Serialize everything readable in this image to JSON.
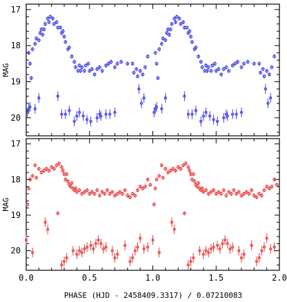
{
  "chart_data": {
    "type": "scatter",
    "xlabel": "PHASE (HJD - 2458409.3317) / 0.07210083",
    "xlim": [
      0,
      2
    ],
    "x_ticks": [
      "0.0",
      "0.5",
      "1.0",
      "1.5",
      "2.0"
    ],
    "panels": [
      {
        "ylabel": "MAG",
        "ylim": [
          20.5,
          16.85
        ],
        "y_ticks": [
          "17",
          "18",
          "19",
          "20"
        ],
        "color": "#3a3ae8",
        "series": [
          {
            "points": [
              [
                0.02,
                18.2
              ],
              [
                0.03,
                18.5
              ],
              [
                0.04,
                18.9
              ],
              [
                0.05,
                18.1
              ],
              [
                0.07,
                17.95
              ],
              [
                0.08,
                17.8
              ],
              [
                0.1,
                17.85
              ],
              [
                0.11,
                17.65
              ],
              [
                0.12,
                17.55
              ],
              [
                0.13,
                17.7
              ],
              [
                0.14,
                17.55
              ],
              [
                0.15,
                17.4
              ],
              [
                0.17,
                17.25
              ],
              [
                0.18,
                17.35
              ],
              [
                0.19,
                17.2
              ],
              [
                0.21,
                17.25
              ],
              [
                0.22,
                17.4
              ],
              [
                0.24,
                17.35
              ],
              [
                0.25,
                17.5
              ],
              [
                0.27,
                17.5
              ],
              [
                0.28,
                17.65
              ],
              [
                0.29,
                17.6
              ],
              [
                0.3,
                17.75
              ],
              [
                0.31,
                17.9
              ],
              [
                0.33,
                18.1
              ],
              [
                0.34,
                18.05
              ],
              [
                0.36,
                18.3
              ],
              [
                0.38,
                18.45
              ],
              [
                0.39,
                18.6
              ],
              [
                0.41,
                18.7
              ],
              [
                0.42,
                18.55
              ],
              [
                0.43,
                18.7
              ],
              [
                0.44,
                18.6
              ],
              [
                0.46,
                18.7
              ],
              [
                0.47,
                18.55
              ],
              [
                0.49,
                18.5
              ],
              [
                0.5,
                18.7
              ],
              [
                0.52,
                18.65
              ],
              [
                0.54,
                18.8
              ],
              [
                0.56,
                18.65
              ],
              [
                0.58,
                18.6
              ],
              [
                0.6,
                18.7
              ],
              [
                0.63,
                18.55
              ],
              [
                0.65,
                18.5
              ],
              [
                0.67,
                18.45
              ],
              [
                0.7,
                18.6
              ],
              [
                0.72,
                18.5
              ],
              [
                0.75,
                18.45
              ],
              [
                0.8,
                18.5
              ],
              [
                0.84,
                18.5
              ],
              [
                0.85,
                18.75
              ],
              [
                0.87,
                18.65
              ],
              [
                0.88,
                18.85
              ],
              [
                0.9,
                18.7
              ],
              [
                0.92,
                18.8
              ],
              [
                0.94,
                18.6
              ],
              [
                0.96,
                18.3
              ]
            ]
          },
          {
            "points": [
              [
                0.01,
                19.85
              ],
              [
                0.02,
                19.75
              ],
              [
                0.03,
                19.7
              ],
              [
                0.07,
                19.75
              ],
              [
                0.1,
                19.45
              ],
              [
                0.25,
                19.4
              ],
              [
                0.28,
                19.9
              ],
              [
                0.31,
                19.9
              ],
              [
                0.34,
                19.8
              ],
              [
                0.38,
                20.1
              ],
              [
                0.4,
                19.95
              ],
              [
                0.42,
                19.85
              ],
              [
                0.45,
                19.95
              ],
              [
                0.48,
                20.05
              ],
              [
                0.51,
                20.1
              ],
              [
                0.56,
                20.0
              ],
              [
                0.58,
                19.9
              ],
              [
                0.59,
                19.95
              ],
              [
                0.63,
                19.9
              ],
              [
                0.66,
                19.9
              ],
              [
                0.7,
                19.85
              ],
              [
                0.89,
                19.2
              ],
              [
                0.91,
                19.6
              ],
              [
                0.93,
                19.45
              ]
            ]
          }
        ]
      },
      {
        "ylabel": "MAG",
        "ylim": [
          20.55,
          16.85
        ],
        "y_ticks": [
          "17",
          "18",
          "19",
          "20"
        ],
        "color": "#e83a3a",
        "series": [
          {
            "points": [
              [
                0.01,
                18.7
              ],
              [
                0.02,
                18.25
              ],
              [
                0.03,
                18.0
              ],
              [
                0.05,
                17.9
              ],
              [
                0.07,
                17.6
              ],
              [
                0.08,
                17.95
              ],
              [
                0.1,
                17.7
              ],
              [
                0.12,
                17.8
              ],
              [
                0.14,
                17.75
              ],
              [
                0.16,
                17.7
              ],
              [
                0.18,
                17.75
              ],
              [
                0.2,
                17.65
              ],
              [
                0.22,
                17.7
              ],
              [
                0.24,
                17.6
              ],
              [
                0.26,
                17.55
              ],
              [
                0.28,
                17.65
              ],
              [
                0.29,
                17.75
              ],
              [
                0.3,
                17.85
              ],
              [
                0.31,
                18.0
              ],
              [
                0.32,
                17.85
              ],
              [
                0.33,
                18.05
              ],
              [
                0.34,
                18.15
              ],
              [
                0.35,
                18.2
              ],
              [
                0.36,
                18.1
              ],
              [
                0.37,
                18.25
              ],
              [
                0.38,
                18.3
              ],
              [
                0.39,
                18.25
              ],
              [
                0.4,
                18.35
              ],
              [
                0.42,
                18.3
              ],
              [
                0.44,
                18.4
              ],
              [
                0.46,
                18.35
              ],
              [
                0.48,
                18.3
              ],
              [
                0.5,
                18.4
              ],
              [
                0.52,
                18.35
              ],
              [
                0.54,
                18.4
              ],
              [
                0.56,
                18.3
              ],
              [
                0.58,
                18.45
              ],
              [
                0.6,
                18.35
              ],
              [
                0.62,
                18.4
              ],
              [
                0.64,
                18.3
              ],
              [
                0.66,
                18.4
              ],
              [
                0.68,
                18.35
              ],
              [
                0.7,
                18.45
              ],
              [
                0.72,
                18.4
              ],
              [
                0.74,
                18.35
              ],
              [
                0.76,
                18.4
              ],
              [
                0.78,
                18.3
              ],
              [
                0.8,
                18.45
              ],
              [
                0.82,
                18.5
              ],
              [
                0.84,
                18.4
              ],
              [
                0.86,
                18.45
              ],
              [
                0.88,
                18.3
              ],
              [
                0.9,
                18.2
              ],
              [
                0.92,
                18.25
              ],
              [
                0.94,
                18.2
              ],
              [
                0.96,
                18.0
              ],
              [
                0.98,
                18.15
              ]
            ]
          },
          {
            "points": [
              [
                0.0,
                19.7
              ],
              [
                0.05,
                20.05
              ],
              [
                0.15,
                19.2
              ],
              [
                0.17,
                19.4
              ],
              [
                0.25,
                18.95
              ],
              [
                0.28,
                20.4
              ],
              [
                0.3,
                20.3
              ],
              [
                0.32,
                20.2
              ],
              [
                0.37,
                20.0
              ],
              [
                0.4,
                20.1
              ],
              [
                0.42,
                20.0
              ],
              [
                0.44,
                20.05
              ],
              [
                0.46,
                19.95
              ],
              [
                0.48,
                19.9
              ],
              [
                0.51,
                19.85
              ],
              [
                0.53,
                19.95
              ],
              [
                0.55,
                19.8
              ],
              [
                0.57,
                19.7
              ],
              [
                0.59,
                19.8
              ],
              [
                0.61,
                19.95
              ],
              [
                0.63,
                19.9
              ],
              [
                0.68,
                20.0
              ],
              [
                0.7,
                20.2
              ],
              [
                0.72,
                20.1
              ],
              [
                0.78,
                19.85
              ],
              [
                0.82,
                20.3
              ],
              [
                0.84,
                20.2
              ],
              [
                0.86,
                20.0
              ],
              [
                0.88,
                19.9
              ],
              [
                0.9,
                19.65
              ],
              [
                0.93,
                19.95
              ],
              [
                0.96,
                19.9
              ]
            ]
          }
        ]
      }
    ]
  }
}
